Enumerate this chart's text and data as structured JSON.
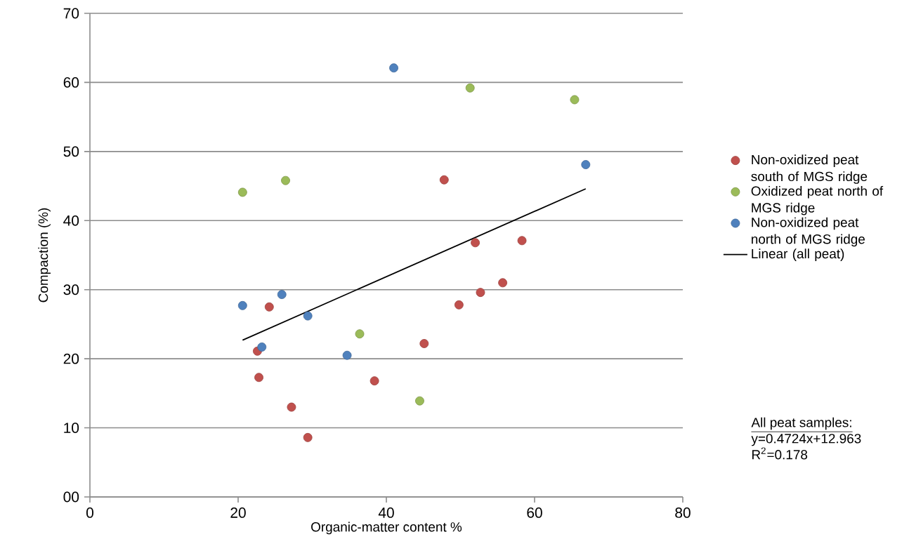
{
  "chart_data": {
    "type": "scatter",
    "xlabel": "Organic-matter content %",
    "ylabel": "Compaction (%)",
    "xlim": [
      0,
      80
    ],
    "xticks": [
      0,
      20,
      40,
      60,
      80
    ],
    "ylim": [
      0,
      70
    ],
    "yticks": [
      {
        "value": 0,
        "label": "00"
      },
      10,
      20,
      30,
      40,
      50,
      60,
      70
    ],
    "grid": "y",
    "legend": "right",
    "marker": "circle",
    "series": [
      {
        "name": "Non-oxidized peat south of MGS ridge",
        "color": "#c0504d",
        "x": [
          22.6,
          22.8,
          24.2,
          27.2,
          29.4,
          38.4,
          45.1,
          47.8,
          49.8,
          52.0,
          52.7,
          55.7,
          58.3
        ],
        "values": [
          21.1,
          17.3,
          27.5,
          13.0,
          8.6,
          16.8,
          22.2,
          45.9,
          27.8,
          36.8,
          29.6,
          31.0,
          37.1
        ]
      },
      {
        "name": "Oxidized peat north of MGS ridge",
        "color": "#9bbb59",
        "x": [
          20.6,
          26.4,
          36.4,
          44.5,
          51.3,
          65.4
        ],
        "values": [
          44.1,
          45.8,
          23.6,
          13.9,
          59.2,
          57.5
        ]
      },
      {
        "name": "Non-oxidized peat north of MGS ridge",
        "color": "#4f81bd",
        "x": [
          20.6,
          23.2,
          25.9,
          29.4,
          34.7,
          41.0,
          66.9
        ],
        "values": [
          27.7,
          21.7,
          29.3,
          26.2,
          20.5,
          62.1,
          48.1
        ]
      },
      {
        "name": "Linear (all peat)",
        "type": "line",
        "color": "#000000",
        "marker": "none",
        "x": [
          20.6,
          66.9
        ],
        "values": [
          22.7,
          44.6
        ]
      }
    ],
    "annotations": [
      "All peat samples:",
      "y=0.4724x+12.963",
      "R$^{2}$=0.178"
    ]
  }
}
